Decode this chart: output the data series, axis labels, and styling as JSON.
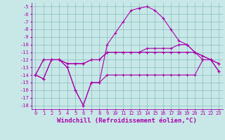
{
  "xlabel": "Windchill (Refroidissement éolien,°C)",
  "x": [
    0,
    1,
    2,
    3,
    4,
    5,
    6,
    7,
    8,
    9,
    10,
    11,
    12,
    13,
    14,
    15,
    16,
    17,
    18,
    19,
    20,
    21,
    22,
    23
  ],
  "line1": [
    -14,
    -14.5,
    -12,
    -12,
    -13,
    -16,
    -18,
    -15,
    -15,
    -14,
    -14,
    -14,
    -14,
    -14,
    -14,
    -14,
    -14,
    -14,
    -14,
    -14,
    -14,
    -12,
    -12,
    -13.5
  ],
  "line2": [
    -14,
    -14.5,
    -12,
    -12,
    -13,
    -16,
    -18,
    -15,
    -15,
    -10,
    -8.5,
    -7,
    -5.5,
    -5.2,
    -5,
    -5.5,
    -6.5,
    -8,
    -9.5,
    -10,
    -11,
    -12,
    -12,
    -13.5
  ],
  "line3": [
    -14,
    -12,
    -12,
    -12,
    -12.5,
    -12.5,
    -12.5,
    -12,
    -12,
    -11,
    -11,
    -11,
    -11,
    -11,
    -10.5,
    -10.5,
    -10.5,
    -10.5,
    -10,
    -10,
    -11,
    -11.5,
    -12,
    -12.5
  ],
  "line4": [
    -14,
    -12,
    -12,
    -12,
    -12.5,
    -12.5,
    -12.5,
    -12,
    -12,
    -11,
    -11,
    -11,
    -11,
    -11,
    -11,
    -11,
    -11,
    -11,
    -11,
    -11,
    -11,
    -11.5,
    -12,
    -12.5
  ],
  "bg_color": "#c8e8e8",
  "line_color": "#aa00aa",
  "grid_color": "#88bbbb",
  "ylim": [
    -18.5,
    -4.5
  ],
  "yticks": [
    -5,
    -6,
    -7,
    -8,
    -9,
    -10,
    -11,
    -12,
    -13,
    -14,
    -15,
    -16,
    -17,
    -18
  ],
  "xticks": [
    0,
    1,
    2,
    3,
    4,
    5,
    6,
    7,
    8,
    9,
    10,
    11,
    12,
    13,
    14,
    15,
    16,
    17,
    18,
    19,
    20,
    21,
    22,
    23
  ],
  "tick_fontsize": 5.0,
  "label_fontsize": 6.5,
  "marker": "+",
  "markersize": 3.0,
  "linewidth": 0.8
}
